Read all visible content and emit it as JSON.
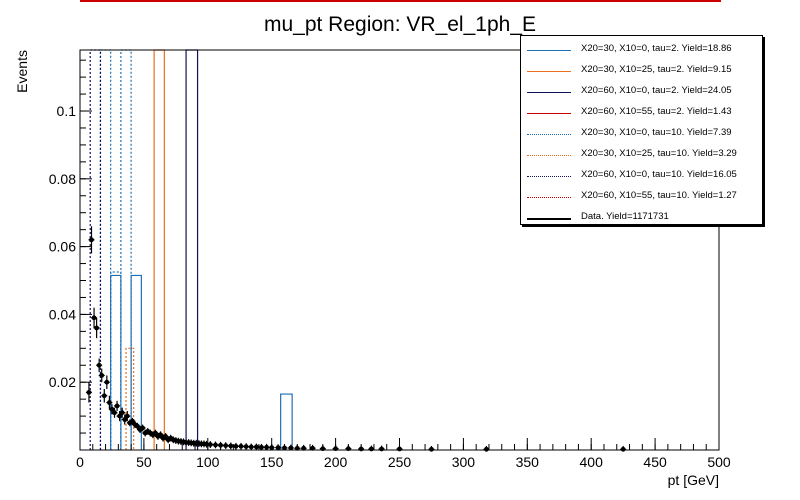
{
  "chart_data": {
    "type": "bar",
    "title": "mu_pt Region: VR_el_1ph_E",
    "xlabel": "pt [GeV]",
    "ylabel": "Events",
    "xlim": [
      0,
      500
    ],
    "ylim": [
      0,
      0.118
    ],
    "grid": false,
    "legend_position": "top-right",
    "x_ticks": [
      0,
      50,
      100,
      150,
      200,
      250,
      300,
      350,
      400,
      450,
      500
    ],
    "y_ticks": [
      0.02,
      0.04,
      0.06,
      0.08,
      0.1
    ],
    "bin_edges": [
      0,
      8,
      16,
      24,
      32,
      40,
      48,
      56,
      64,
      72,
      80,
      90,
      100,
      120,
      140,
      160,
      170,
      180,
      200,
      225,
      250,
      300,
      350,
      400,
      450,
      500
    ],
    "signal_series": [
      {
        "name": "X20=30, X10=0, tau=2. Yield=18.86",
        "color": "#1f6fb4",
        "dash": false,
        "bins": [
          [
            24,
            32,
            0.0515
          ],
          [
            40,
            48,
            0.0515
          ],
          [
            157,
            166,
            0.0165
          ]
        ]
      },
      {
        "name": "X20=30, X10=25, tau=2. Yield=9.15",
        "color": "#e8701f",
        "dash": false,
        "bins": [
          [
            58,
            66,
            0.2
          ]
        ]
      },
      {
        "name": "X20=60, X10=0, tau=2. Yield=24.05",
        "color": "#101060",
        "dash": false,
        "bins": [
          [
            83,
            92,
            0.2
          ]
        ]
      },
      {
        "name": "X20=60, X10=55, tau=2. Yield=1.43",
        "color": "#cc0000",
        "dash": false,
        "bins": []
      },
      {
        "name": "X20=30, X10=0, tau=10. Yield=7.39",
        "color": "#1f6fb4",
        "dash": true,
        "bins": [
          [
            16,
            24,
            0.2
          ],
          [
            24,
            32,
            0.0525
          ],
          [
            32,
            40,
            0.2
          ]
        ]
      },
      {
        "name": "X20=30, X10=25, tau=10. Yield=3.29",
        "color": "#e8701f",
        "dash": true,
        "bins": [
          [
            36,
            42,
            0.03
          ]
        ]
      },
      {
        "name": "X20=60, X10=0, tau=10. Yield=16.05",
        "color": "#101060",
        "dash": true,
        "bins": [
          [
            8,
            16,
            0.2
          ]
        ]
      },
      {
        "name": "X20=60, X10=55, tau=10. Yield=1.27",
        "color": "#cc0000",
        "dash": true,
        "bins": []
      }
    ],
    "data_series": {
      "name": "Data. Yield=1171731",
      "color": "#000000",
      "points": [
        [
          7,
          0.017,
          0.003
        ],
        [
          9,
          0.062,
          0.004
        ],
        [
          11,
          0.039,
          0.003
        ],
        [
          13,
          0.036,
          0.003
        ],
        [
          15,
          0.025,
          0.002
        ],
        [
          17,
          0.022,
          0.002
        ],
        [
          19,
          0.016,
          0.002
        ],
        [
          21,
          0.02,
          0.002
        ],
        [
          23,
          0.014,
          0.002
        ],
        [
          25,
          0.012,
          0.0015
        ],
        [
          27,
          0.011,
          0.0015
        ],
        [
          29,
          0.013,
          0.0015
        ],
        [
          31,
          0.01,
          0.0015
        ],
        [
          33,
          0.011,
          0.0015
        ],
        [
          35,
          0.009,
          0.0015
        ],
        [
          37,
          0.01,
          0.0015
        ],
        [
          39,
          0.008,
          0.001
        ],
        [
          41,
          0.0085,
          0.001
        ],
        [
          43,
          0.0075,
          0.001
        ],
        [
          45,
          0.007,
          0.001
        ],
        [
          47,
          0.006,
          0.001
        ],
        [
          49,
          0.0065,
          0.001
        ],
        [
          51,
          0.005,
          0.001
        ],
        [
          53,
          0.0055,
          0.001
        ],
        [
          55,
          0.005,
          0.001
        ],
        [
          57,
          0.0045,
          0.001
        ],
        [
          59,
          0.005,
          0.001
        ],
        [
          61,
          0.004,
          0.001
        ],
        [
          63,
          0.0045,
          0.001
        ],
        [
          65,
          0.0035,
          0.001
        ],
        [
          67,
          0.004,
          0.001
        ],
        [
          69,
          0.003,
          0.001
        ],
        [
          71,
          0.0035,
          0.001
        ],
        [
          73,
          0.003,
          0.001
        ],
        [
          75,
          0.0028,
          0.001
        ],
        [
          77,
          0.0026,
          0.001
        ],
        [
          79,
          0.0025,
          0.001
        ],
        [
          81,
          0.0024,
          0.001
        ],
        [
          83,
          0.0022,
          0.001
        ],
        [
          85,
          0.0022,
          0.001
        ],
        [
          87,
          0.0021,
          0.001
        ],
        [
          89,
          0.002,
          0.001
        ],
        [
          91,
          0.002,
          0.001
        ],
        [
          93,
          0.0019,
          0.001
        ],
        [
          95,
          0.0018,
          0.001
        ],
        [
          97,
          0.0018,
          0.001
        ],
        [
          99,
          0.0017,
          0.001
        ],
        [
          102,
          0.0016,
          0.001
        ],
        [
          106,
          0.0015,
          0.001
        ],
        [
          110,
          0.0014,
          0.001
        ],
        [
          114,
          0.0013,
          0.001
        ],
        [
          118,
          0.0012,
          0.001
        ],
        [
          122,
          0.0011,
          0.001
        ],
        [
          126,
          0.0011,
          0.001
        ],
        [
          130,
          0.001,
          0.001
        ],
        [
          134,
          0.0009,
          0.001
        ],
        [
          138,
          0.0009,
          0.001
        ],
        [
          142,
          0.0008,
          0.001
        ],
        [
          146,
          0.0008,
          0.001
        ],
        [
          150,
          0.0007,
          0.001
        ],
        [
          155,
          0.0007,
          0.001
        ],
        [
          160,
          0.0006,
          0.001
        ],
        [
          165,
          0.0006,
          0.001
        ],
        [
          170,
          0.0005,
          0.001
        ],
        [
          175,
          0.0005,
          0.001
        ],
        [
          182,
          0.0005,
          0.001
        ],
        [
          190,
          0.0004,
          0.001
        ],
        [
          200,
          0.0004,
          0.001
        ],
        [
          210,
          0.0004,
          0.001
        ],
        [
          220,
          0.0003,
          0.001
        ],
        [
          228,
          0.0003,
          0.001
        ],
        [
          236,
          0.0003,
          0.001
        ],
        [
          250,
          0.0003,
          0.001
        ],
        [
          275,
          0.0002,
          0.001
        ],
        [
          318,
          0.0002,
          0.001
        ],
        [
          425,
          0.0002,
          0.001
        ]
      ]
    }
  }
}
